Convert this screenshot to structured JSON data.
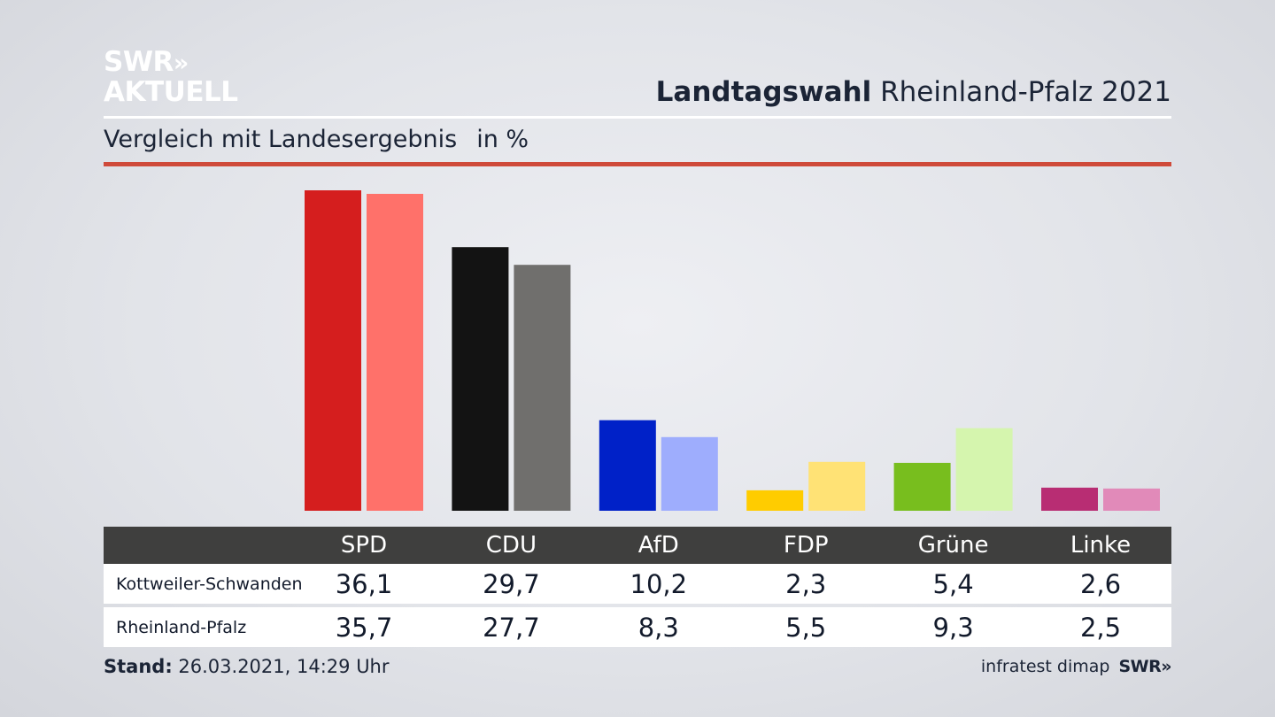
{
  "logo": {
    "line1": "SWR",
    "chevrons": "»",
    "line2": "AKTUELL"
  },
  "header": {
    "title_bold": "Landtagswahl",
    "title_rest": "Rheinland-Pfalz 2021"
  },
  "subtitle": {
    "text": "Vergleich mit Landesergebnis",
    "unit": "in %"
  },
  "colors": {
    "red_rule": "#cf4a3a",
    "table_header_bg": "#3f3f3e"
  },
  "chart_data": {
    "type": "bar",
    "categories": [
      "SPD",
      "CDU",
      "AfD",
      "FDP",
      "Grüne",
      "Linke"
    ],
    "series": [
      {
        "name": "Kottweiler-Schwanden",
        "values": [
          36.1,
          29.7,
          10.2,
          2.3,
          5.4,
          2.6
        ],
        "display": [
          "36,1",
          "29,7",
          "10,2",
          "2,3",
          "5,4",
          "2,6"
        ],
        "colors": [
          "#d51e1e",
          "#131313",
          "#0021c8",
          "#ffcc00",
          "#78be1e",
          "#b82d73"
        ]
      },
      {
        "name": "Rheinland-Pfalz",
        "values": [
          35.7,
          27.7,
          8.3,
          5.5,
          9.3,
          2.5
        ],
        "display": [
          "35,7",
          "27,7",
          "8,3",
          "5,5",
          "9,3",
          "2,5"
        ],
        "colors": [
          "#ff716a",
          "#706f6d",
          "#9eadfd",
          "#ffe275",
          "#d5f5ae",
          "#e18ab9"
        ]
      }
    ],
    "grid": false,
    "legend": "table-below"
  },
  "footer": {
    "stand_label": "Stand:",
    "stand_value": "26.03.2021, 14:29 Uhr",
    "source": "infratest dimap",
    "swr": "SWR»"
  }
}
